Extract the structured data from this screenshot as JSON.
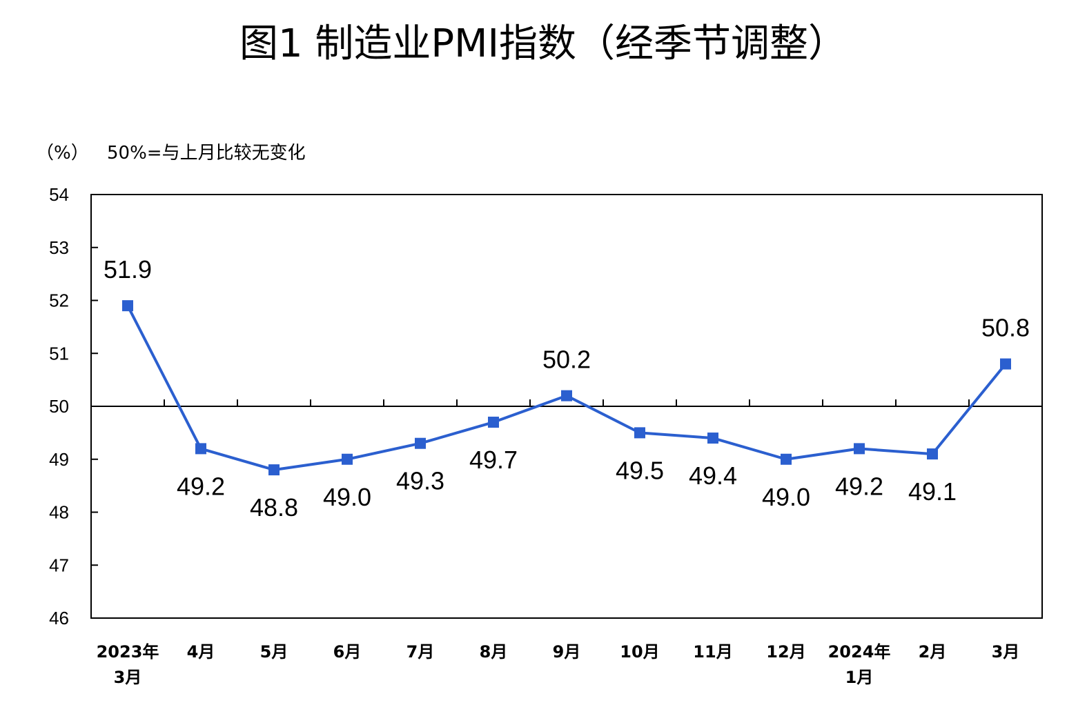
{
  "title": "图1  制造业PMI指数（经季节调整）",
  "unit_label": "（%）",
  "note": "50%=与上月比较无变化",
  "chart_data": {
    "type": "line",
    "categories": [
      [
        "2023年",
        "3月"
      ],
      [
        "4月"
      ],
      [
        "5月"
      ],
      [
        "6月"
      ],
      [
        "7月"
      ],
      [
        "8月"
      ],
      [
        "9月"
      ],
      [
        "10月"
      ],
      [
        "11月"
      ],
      [
        "12月"
      ],
      [
        "2024年",
        "1月"
      ],
      [
        "2月"
      ],
      [
        "3月"
      ]
    ],
    "series": [
      {
        "values": [
          51.9,
          49.2,
          48.8,
          49.0,
          49.3,
          49.7,
          50.2,
          49.5,
          49.4,
          49.0,
          49.2,
          49.1,
          50.8
        ],
        "labels": [
          "51.9",
          "49.2",
          "48.8",
          "49.0",
          "49.3",
          "49.7",
          "50.2",
          "49.5",
          "49.4",
          "49.0",
          "49.2",
          "49.1",
          "50.8"
        ],
        "label_pos": [
          "above",
          "below",
          "below",
          "below",
          "below",
          "below",
          "above",
          "below",
          "below",
          "below",
          "below",
          "below",
          "above"
        ],
        "color": "#2b5fcf"
      }
    ],
    "ylim": [
      46,
      54
    ],
    "yticks": [
      46,
      47,
      48,
      49,
      50,
      51,
      52,
      53,
      54
    ],
    "reference_line": 50,
    "grid": false,
    "legend": "none"
  }
}
